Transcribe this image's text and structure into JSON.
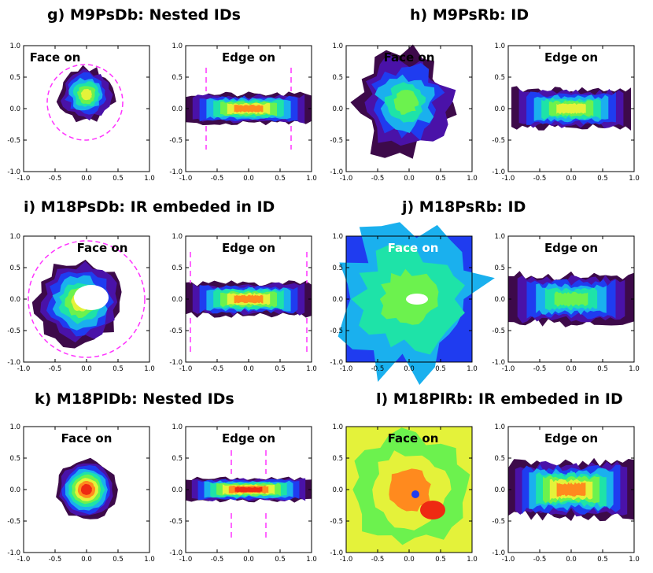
{
  "panels": [
    {
      "title": "g) M9PsDb: Nested IDs",
      "face": {
        "label": "Face on",
        "label_color": "#000000"
      },
      "edge": {
        "label": "Edge on"
      }
    },
    {
      "title": "h) M9PsRb: ID",
      "face": {
        "label": "Face on",
        "label_color": "#000000"
      },
      "edge": {
        "label": "Edge on"
      }
    },
    {
      "title": "i) M18PsDb: IR embeded in ID",
      "face": {
        "label": "Face on",
        "label_color": "#000000"
      },
      "edge": {
        "label": "Edge on"
      }
    },
    {
      "title": "j) M18PsRb: ID",
      "face": {
        "label": "Face on",
        "label_color": "#ffffff"
      },
      "edge": {
        "label": "Edge on"
      }
    },
    {
      "title": "k) M18PlDb: Nested IDs",
      "face": {
        "label": "Face on",
        "label_color": "#000000"
      },
      "edge": {
        "label": "Edge on"
      }
    },
    {
      "title": "l) M18PlRb: IR embeded in ID",
      "face": {
        "label": "Face on",
        "label_color": "#000000"
      },
      "edge": {
        "label": "Edge on"
      }
    }
  ],
  "axis_ticks": {
    "x": [
      "-1.0",
      "-0.5",
      "0.0",
      "0.5",
      "1.0"
    ],
    "y": [
      "1.0",
      "0.5",
      "0.0",
      "-0.5",
      "-1.0"
    ]
  },
  "colors": {
    "dashed_marker": "#ff33ff",
    "colormap": [
      "#3d0a4a",
      "#4a12a8",
      "#1f3cf0",
      "#1ab0ee",
      "#1ee3a8",
      "#6cf24e",
      "#e4f23a",
      "#ff8a1e",
      "#ee2a12"
    ]
  }
}
